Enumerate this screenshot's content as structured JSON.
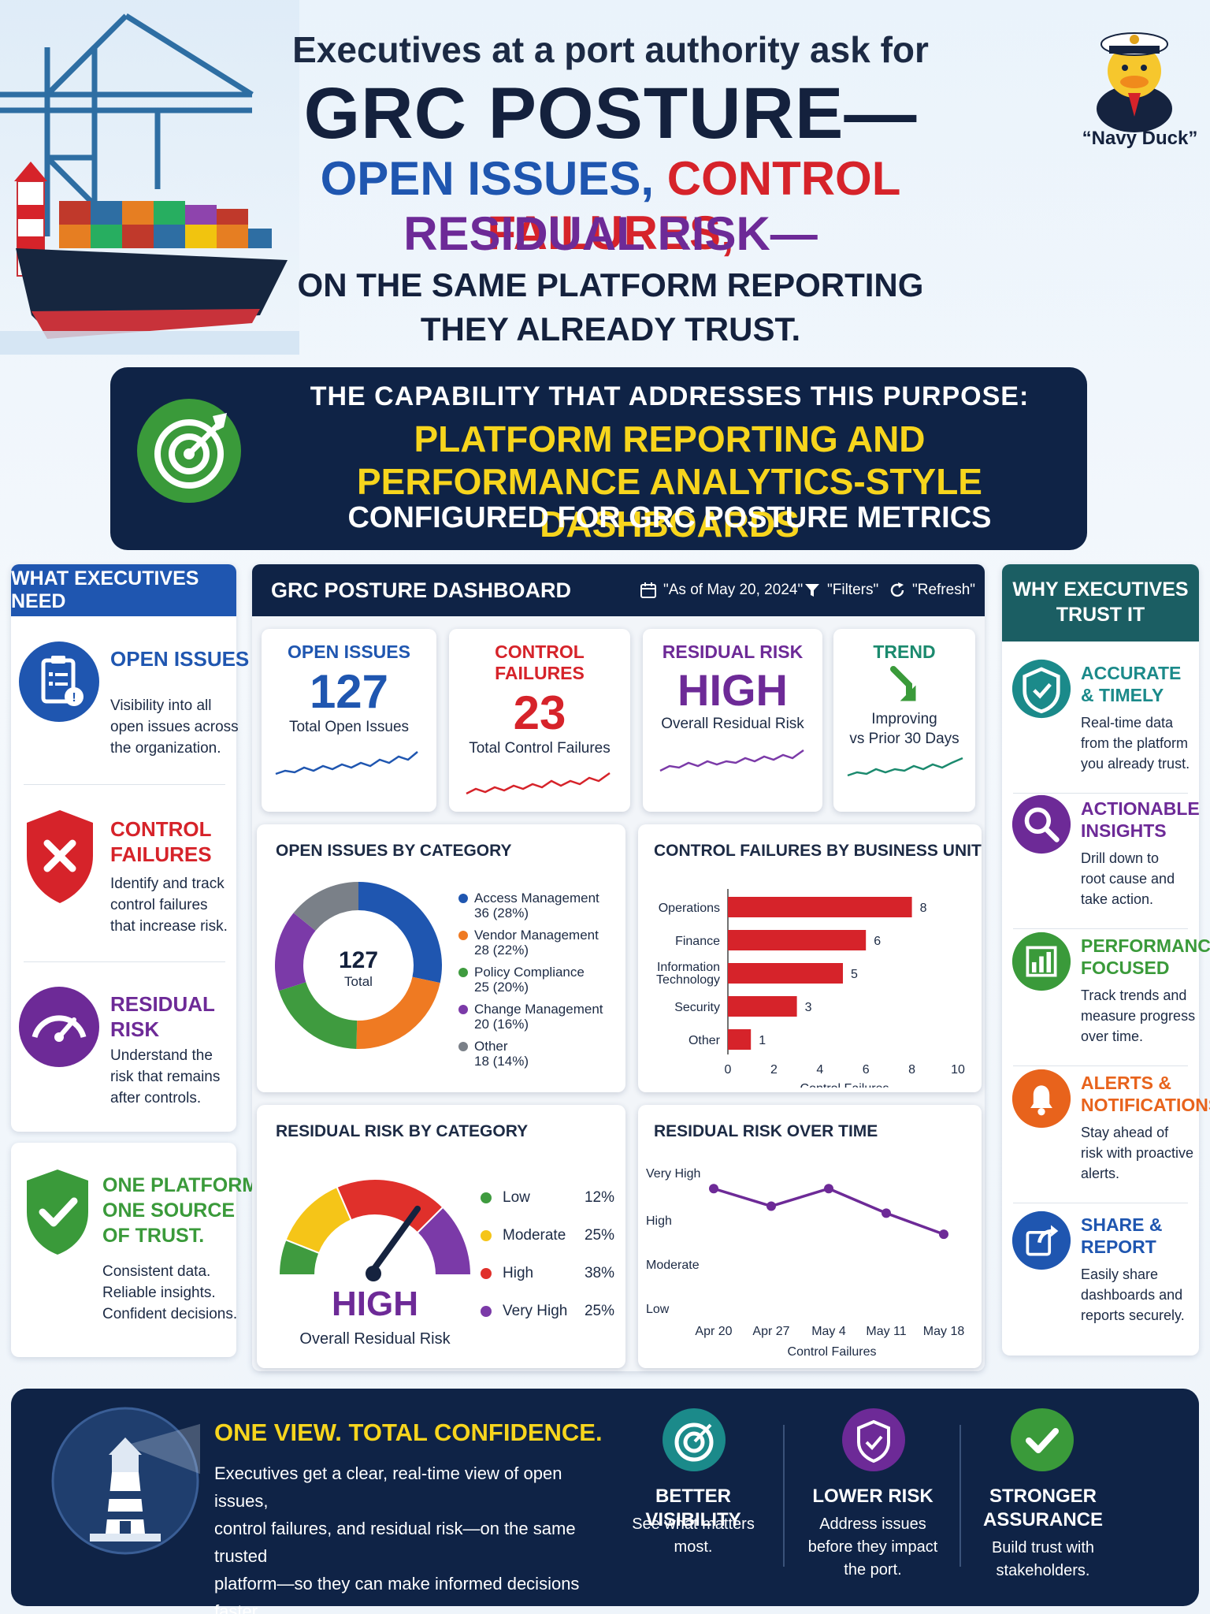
{
  "header": {
    "line1": "Executives at a port authority ask for",
    "line2": "GRC POSTURE—",
    "line3_a": "OPEN ISSUES,",
    "line3_b": "CONTROL FAILURES,",
    "line4": "RESIDUAL RISK—",
    "line5": "ON THE SAME PLATFORM REPORTING",
    "line6": "THEY ALREADY TRUST.",
    "mascot_caption": "“Navy Duck”"
  },
  "capability": {
    "intro": "THE CAPABILITY THAT ADDRESSES THIS PURPOSE:",
    "title1": "PLATFORM REPORTING AND",
    "title2": "PERFORMANCE ANALYTICS-STYLE DASHBOARDS",
    "subtitle": "CONFIGURED FOR GRC POSTURE METRICS",
    "icon": "target-icon"
  },
  "left": {
    "header": "WHAT EXECUTIVES NEED",
    "items": [
      {
        "title": "OPEN ISSUES",
        "desc": [
          "Visibility into all",
          "open issues across",
          "the organization."
        ],
        "icon": "clipboard-icon",
        "color": "#1f56b0"
      },
      {
        "title1": "CONTROL",
        "title2": "FAILURES",
        "desc": [
          "Identify and track",
          "control failures",
          "that increase risk."
        ],
        "icon": "shield-x-icon",
        "color": "#d6232a"
      },
      {
        "title1": "RESIDUAL",
        "title2": "RISK",
        "desc": [
          "Understand the",
          "risk that remains",
          "after controls."
        ],
        "icon": "gauge-icon",
        "color": "#6d2a97"
      }
    ],
    "bottom": {
      "title1": "ONE PLATFORM.",
      "title2": "ONE SOURCE",
      "title3": "OF TRUST.",
      "desc": [
        "Consistent data.",
        "Reliable insights.",
        "Confident decisions."
      ],
      "color": "#3a9a3a"
    }
  },
  "dashboard": {
    "title": "GRC POSTURE DASHBOARD",
    "as_of": "\"As of May 20, 2024\"",
    "filters": "\"Filters\"",
    "refresh": "\"Refresh\"",
    "kpis": [
      {
        "title": "OPEN ISSUES",
        "value": "127",
        "label": "Total Open Issues",
        "color": "#1f56b0"
      },
      {
        "title": "CONTROL FAILURES",
        "value": "23",
        "label": "Total Control Failures",
        "color": "#d6232a"
      },
      {
        "title": "RESIDUAL RISK",
        "value": "HIGH",
        "label": "Overall Residual Risk",
        "color": "#6d2a97"
      },
      {
        "title": "TREND",
        "label1": "Improving",
        "label2": "vs Prior 30 Days",
        "color": "#1b8a6e"
      }
    ],
    "donut_title": "OPEN ISSUES BY CATEGORY",
    "donut_center_value": "127",
    "donut_center_label": "Total",
    "bar_title": "CONTROL FAILURES BY BUSINESS UNIT",
    "gauge_title": "RESIDUAL RISK BY CATEGORY",
    "gauge_value": "HIGH",
    "gauge_label": "Overall Residual Risk",
    "line_title": "RESIDUAL RISK OVER TIME"
  },
  "chart_data": [
    {
      "type": "pie",
      "title": "OPEN ISSUES BY CATEGORY",
      "categories": [
        "Access Management",
        "Vendor Management",
        "Policy Compliance",
        "Change Management",
        "Other"
      ],
      "values": [
        36,
        28,
        25,
        20,
        18
      ],
      "value_labels": [
        "36 (28%)",
        "28 (22%)",
        "25 (20%)",
        "20 (16%)",
        "18 (14%)"
      ],
      "colors": [
        "#1f56b0",
        "#ef7a22",
        "#3f9b3f",
        "#7b3aa8",
        "#7a8088"
      ]
    },
    {
      "type": "bar",
      "title": "CONTROL FAILURES BY BUSINESS UNIT",
      "categories": [
        "Operations",
        "Finance",
        "Information Technology",
        "Security",
        "Other"
      ],
      "values": [
        8,
        6,
        5,
        3,
        1
      ],
      "xlabel": "Control Failures",
      "xticks": [
        "0",
        "2",
        "4",
        "6",
        "8",
        "10"
      ],
      "xlim": [
        0,
        10
      ],
      "color": "#d6232a"
    },
    {
      "type": "pie",
      "title": "RESIDUAL RISK BY CATEGORY",
      "categories": [
        "Low",
        "Moderate",
        "High",
        "Very High"
      ],
      "values": [
        12,
        25,
        38,
        25
      ],
      "value_labels": [
        "12%",
        "25%",
        "38%",
        "25%"
      ],
      "colors": [
        "#3f9b3f",
        "#f5c518",
        "#e0302b",
        "#7b3aa8"
      ]
    },
    {
      "type": "line",
      "title": "RESIDUAL RISK OVER TIME",
      "x": [
        "Apr 20",
        "Apr 27",
        "May 4",
        "May 11",
        "May 18"
      ],
      "y": [
        3.5,
        3.0,
        3.5,
        2.8,
        2.2
      ],
      "yticks": [
        "Low",
        "Moderate",
        "High",
        "Very High"
      ],
      "ylim": [
        0,
        4
      ],
      "xlabel": "Control Failures",
      "color": "#6d2a97"
    }
  ],
  "right": {
    "header1": "WHY EXECUTIVES",
    "header2": "TRUST IT",
    "items": [
      {
        "title1": "ACCURATE",
        "title2": "& TIMELY",
        "desc": [
          "Real-time data",
          "from the platform",
          "you already trust."
        ],
        "color": "#1b8a8a",
        "icon": "shield-check-icon"
      },
      {
        "title1": "ACTIONABLE",
        "title2": "INSIGHTS",
        "desc": [
          "Drill down to",
          "root cause and",
          "take action."
        ],
        "color": "#6d2a97",
        "icon": "magnifier-icon"
      },
      {
        "title1": "PERFORMANCE",
        "title2": "FOCUSED",
        "desc": [
          "Track trends and",
          "measure progress",
          "over time."
        ],
        "color": "#3a9a3a",
        "icon": "bar-chart-icon"
      },
      {
        "title1": "ALERTS &",
        "title2": "NOTIFICATIONS",
        "desc": [
          "Stay ahead of",
          "risk with proactive",
          "alerts."
        ],
        "color": "#e8631c",
        "icon": "bell-icon"
      },
      {
        "title1": "SHARE &",
        "title2": "REPORT",
        "desc": [
          "Easily share",
          "dashboards and",
          "reports securely."
        ],
        "color": "#1f56b0",
        "icon": "share-icon"
      }
    ]
  },
  "footer": {
    "title": "ONE VIEW. TOTAL CONFIDENCE.",
    "text": [
      "Executives get a clear, real-time view of open issues,",
      "control failures, and residual risk—on the same trusted",
      "platform—so they can make informed decisions faster."
    ],
    "benefits": [
      {
        "title1": "BETTER VISIBILITY",
        "desc": [
          "See what matters",
          "most."
        ],
        "color": "#1b8a8a",
        "icon": "target-icon"
      },
      {
        "title1": "LOWER RISK",
        "desc": [
          "Address issues",
          "before they impact",
          "the port."
        ],
        "color": "#6d2a97",
        "icon": "shield-icon"
      },
      {
        "title1": "STRONGER",
        "title2": "ASSURANCE",
        "desc": [
          "Build trust with",
          "stakeholders."
        ],
        "color": "#3a9a3a",
        "icon": "check-icon"
      }
    ]
  }
}
